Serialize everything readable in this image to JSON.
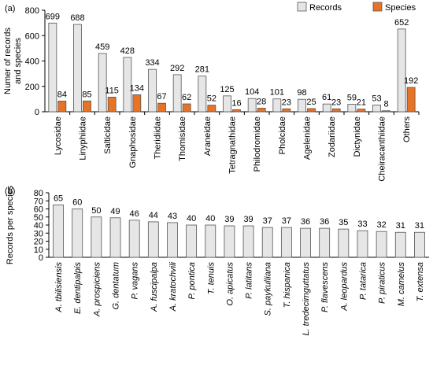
{
  "chart_data": [
    {
      "panel_label": "(a)",
      "type": "bar",
      "ylabel": "Numer of records and species",
      "ylabel_lines": [
        "Numer of records",
        "and species"
      ],
      "ylim": [
        0,
        800
      ],
      "yticks": [
        0,
        200,
        400,
        600,
        800
      ],
      "legend_position": "top-right",
      "categories": [
        "Lycosidae",
        "Linyphiidae",
        "Salticidae",
        "Gnaphosidae",
        "Theridiidae",
        "Thomisidae",
        "Araneidae",
        "Tetragnathidae",
        "Philodromidae",
        "Pholcidae",
        "Agelenidae",
        "Zodariidae",
        "Dictynidae",
        "Cheiracanthiidae",
        "Others"
      ],
      "series": [
        {
          "name": "Records",
          "color": "#e6e6e6",
          "values": [
            699,
            688,
            459,
            428,
            334,
            292,
            281,
            125,
            104,
            101,
            98,
            61,
            59,
            53,
            652
          ]
        },
        {
          "name": "Species",
          "color": "#e67326",
          "values": [
            84,
            85,
            115,
            134,
            67,
            62,
            52,
            16,
            28,
            23,
            25,
            23,
            21,
            8,
            192
          ]
        }
      ]
    },
    {
      "panel_label": "(b)",
      "type": "bar",
      "ylabel": "Records per species",
      "ylim": [
        0,
        80
      ],
      "yticks": [
        0,
        10,
        20,
        30,
        40,
        50,
        60,
        70,
        80
      ],
      "categories": [
        "A. tbilisiensis",
        "E. dentipalpis",
        "A. prospiciens",
        "G. dentatum",
        "P. vagans",
        "A. fuscipalpa",
        "A. kratochvili",
        "P. pontica",
        "T. tenuis",
        "O. apicatus",
        "P. latitans",
        "S. paykulliana",
        "T. hispanica",
        "L. tredecimguttatus",
        "P. flavescens",
        "A. leopardus",
        "P. tatarica",
        "P. piraticus",
        "M. camelus",
        "T. extensa"
      ],
      "series": [
        {
          "name": "",
          "color": "#e6e6e6",
          "values": [
            65,
            60,
            50,
            49,
            46,
            44,
            43,
            40,
            40,
            39,
            39,
            37,
            37,
            36,
            36,
            35,
            33,
            32,
            31,
            31
          ]
        }
      ]
    }
  ]
}
